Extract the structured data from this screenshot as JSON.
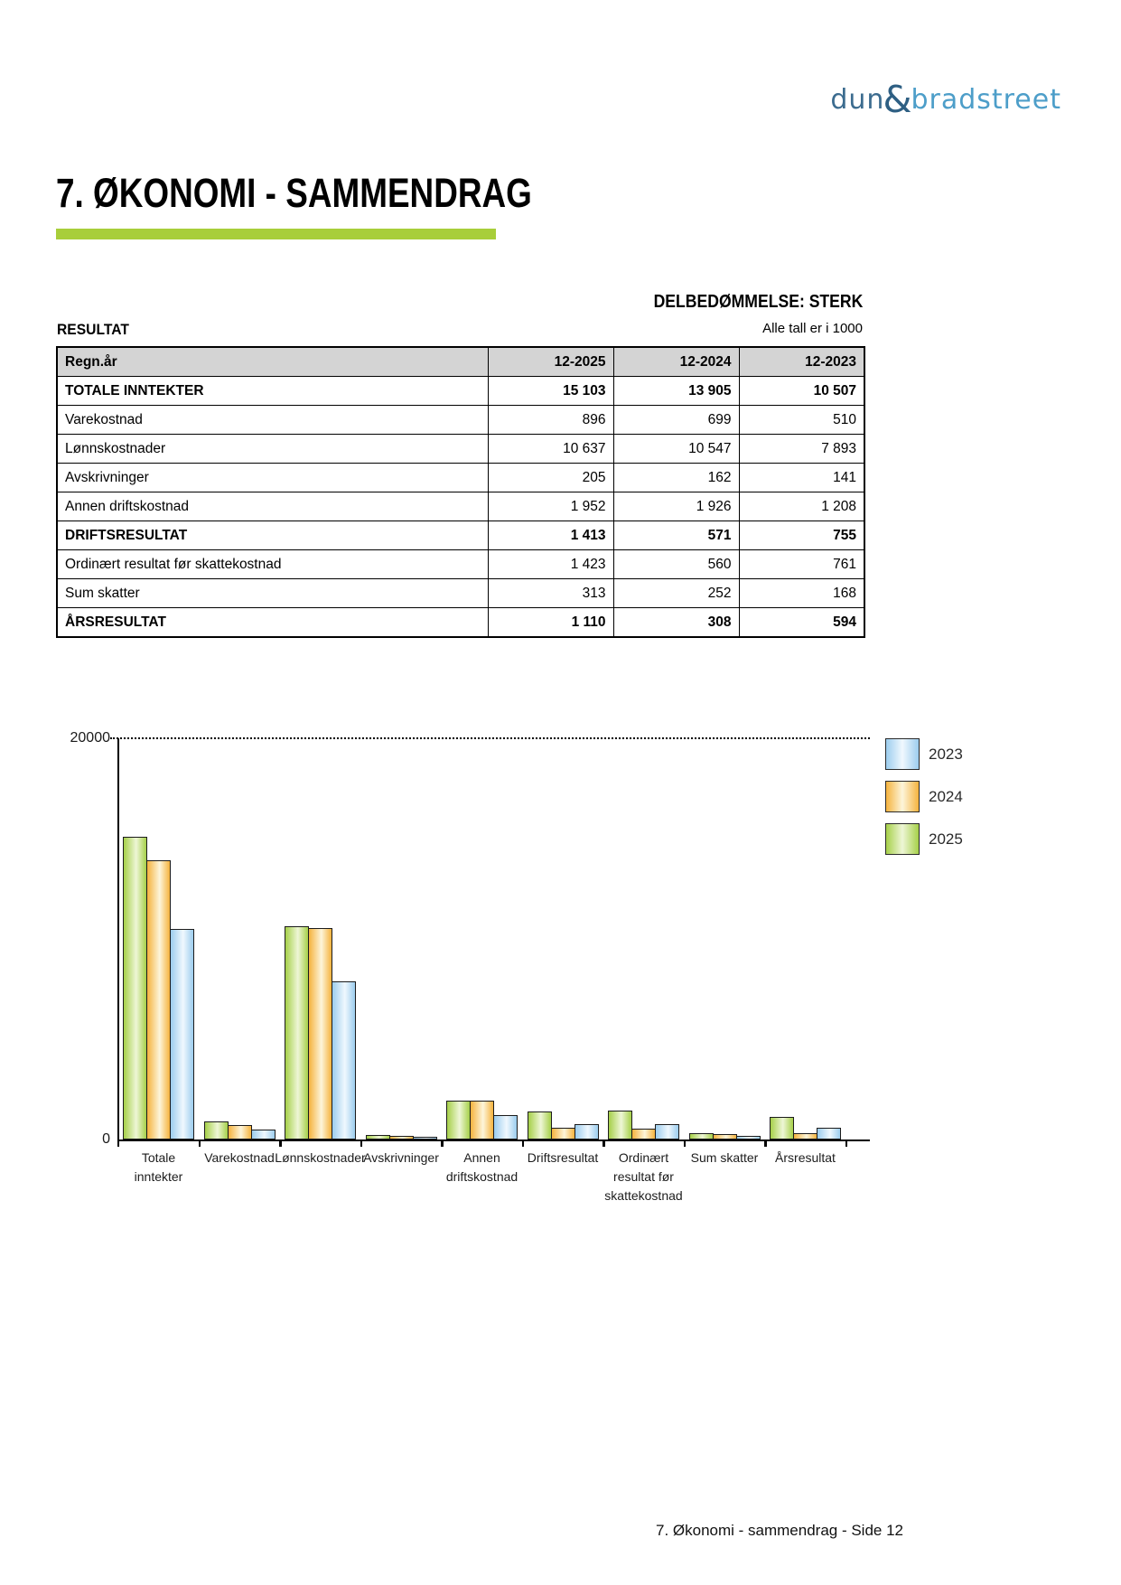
{
  "logo": {
    "dun": "dun",
    "ampersand": "&",
    "bradstreet": "bradstreet",
    "dun_color": "#3c6c8f",
    "ampersand_color": "#2e5f83",
    "bradstreet_color": "#4d9ec9"
  },
  "header": {
    "title": "7. ØKONOMI - SAMMENDRAG",
    "accent_color": "#a8ce3a",
    "assessment": "DELBEDØMMELSE: STERK",
    "section_label": "RESULTAT",
    "units_note": "Alle tall er i 1000"
  },
  "table": {
    "columns": [
      "Regn.år",
      "12-2025",
      "12-2024",
      "12-2023"
    ],
    "header_bg": "#d4d4d4",
    "rows": [
      {
        "label": "TOTALE INNTEKTER",
        "bold": true,
        "values": [
          "15 103",
          "13 905",
          "10 507"
        ]
      },
      {
        "label": "Varekostnad",
        "bold": false,
        "values": [
          "896",
          "699",
          "510"
        ]
      },
      {
        "label": "Lønnskostnader",
        "bold": false,
        "values": [
          "10 637",
          "10 547",
          "7 893"
        ]
      },
      {
        "label": "Avskrivninger",
        "bold": false,
        "values": [
          "205",
          "162",
          "141"
        ]
      },
      {
        "label": "Annen driftskostnad",
        "bold": false,
        "values": [
          "1 952",
          "1 926",
          "1 208"
        ]
      },
      {
        "label": "DRIFTSRESULTAT",
        "bold": true,
        "values": [
          "1 413",
          "571",
          "755"
        ]
      },
      {
        "label": "Ordinært resultat før skattekostnad",
        "bold": false,
        "values": [
          "1 423",
          "560",
          "761"
        ]
      },
      {
        "label": "Sum skatter",
        "bold": false,
        "values": [
          "313",
          "252",
          "168"
        ]
      },
      {
        "label": "ÅRSRESULTAT",
        "bold": true,
        "values": [
          "1 110",
          "308",
          "594"
        ]
      }
    ]
  },
  "chart_data": {
    "type": "bar",
    "categories": [
      [
        "Totale",
        "inntekter"
      ],
      [
        "Varekostnad"
      ],
      [
        "Lønnskostnader"
      ],
      [
        "Avskrivninger"
      ],
      [
        "Annen",
        "driftskostnad"
      ],
      [
        "Driftsresultat"
      ],
      [
        "Ordinært",
        "resultat før",
        "skattekostnad"
      ],
      [
        "Sum skatter"
      ],
      [
        "Årsresultat"
      ]
    ],
    "series": [
      {
        "name": "2023",
        "edge_color": "#9ccdee",
        "center_color": "#f0f8fe",
        "values": [
          10507,
          510,
          7893,
          141,
          1208,
          755,
          761,
          168,
          594
        ]
      },
      {
        "name": "2024",
        "edge_color": "#f5b33e",
        "center_color": "#fdf5da",
        "values": [
          13905,
          699,
          10547,
          162,
          1926,
          571,
          560,
          252,
          308
        ]
      },
      {
        "name": "2025",
        "edge_color": "#a6d049",
        "center_color": "#eef6d6",
        "values": [
          15103,
          896,
          10637,
          205,
          1952,
          1413,
          1423,
          313,
          1110
        ]
      }
    ],
    "legend_order": [
      "2023",
      "2024",
      "2025"
    ],
    "legend_position": "top-right",
    "y_axis": {
      "min": 0,
      "max": 20000,
      "tick_labels": [
        "0",
        "20000"
      ]
    },
    "gridline_at": 20000,
    "grid": "dotted-top-only",
    "bar_order_in_group": [
      "2025",
      "2024",
      "2023"
    ]
  },
  "footer": {
    "text": "7. Økonomi - sammendrag - Side 12"
  }
}
